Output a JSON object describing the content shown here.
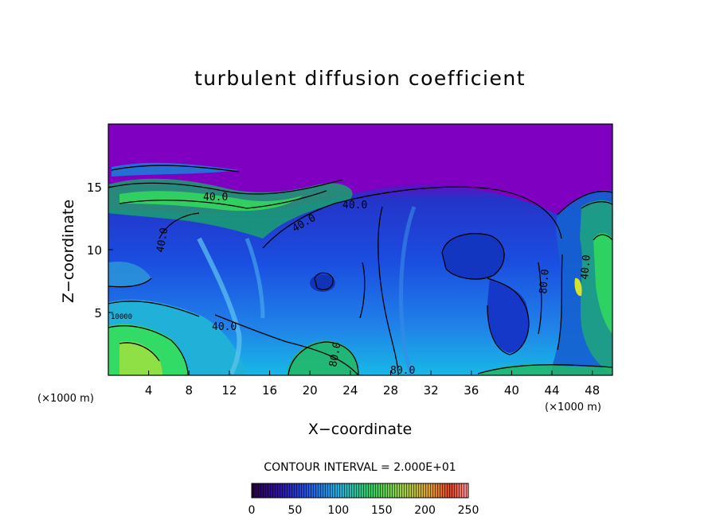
{
  "chart_data": {
    "type": "heatmap",
    "title": "turbulent diffusion coefficient",
    "xlabel": "X−coordinate",
    "ylabel": "Z−coordinate",
    "x_unit_left": "(×1000 m)",
    "x_unit_right": "(×1000 m)",
    "x_ticks": [
      4,
      8,
      12,
      16,
      20,
      24,
      28,
      32,
      36,
      40,
      44,
      48
    ],
    "y_ticks": [
      5,
      10,
      15
    ],
    "xlim": [
      0,
      50
    ],
    "ylim": [
      0,
      20
    ],
    "contour_interval_text": "CONTOUR INTERVAL = 2.000E+01",
    "contour_labels": [
      "40.0",
      "40.0",
      "40.0",
      "40.0",
      "40.0",
      "80.0",
      "80.0",
      "80.0",
      "40.0",
      "10000"
    ],
    "colorbar": {
      "ticks": [
        0,
        50,
        100,
        150,
        200,
        250
      ],
      "range": [
        0,
        250
      ]
    }
  },
  "colors": {
    "upper_field": "#7f00c0",
    "mid_field": "#1a3cd8",
    "low_field": "#1ea6e6",
    "green_band": "#33e05a",
    "yellow_band": "#d7e32a"
  }
}
